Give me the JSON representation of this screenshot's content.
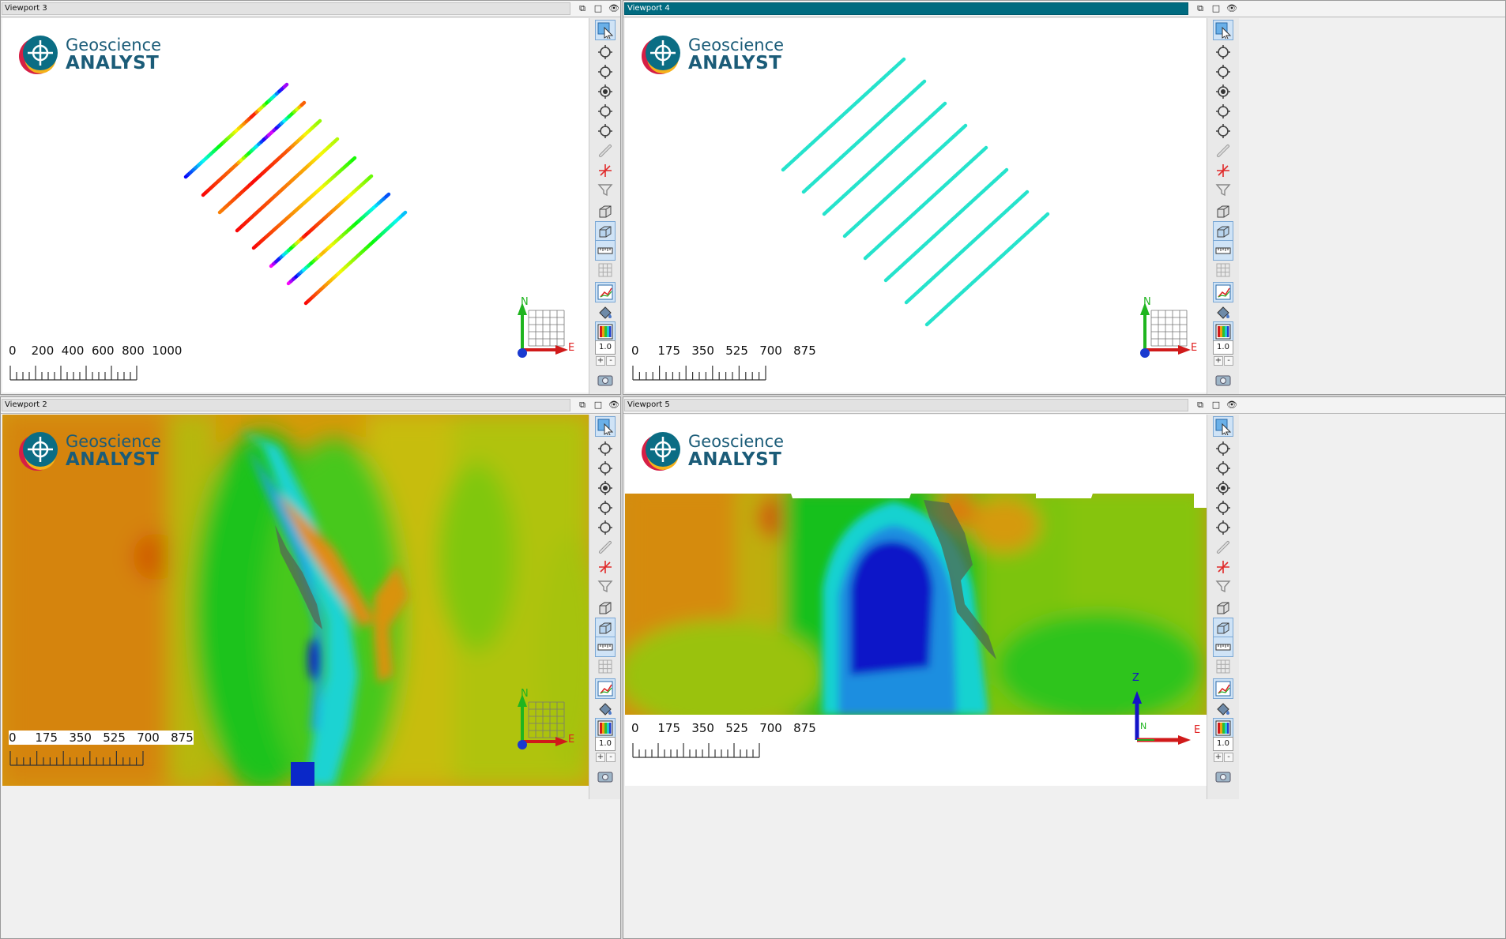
{
  "viewports": [
    {
      "title": "Viewport 3",
      "scale_labels": "0    200  400  600  800  1000",
      "axis_up": "N",
      "axis_right": "E",
      "zoom": "1.0"
    },
    {
      "title": "Viewport 4",
      "scale_labels": "0     175   350   525   700   875",
      "axis_up": "N",
      "axis_right": "E",
      "zoom": "1.0"
    },
    {
      "title": "Viewport 2",
      "scale_labels": "0     175   350   525   700   875",
      "axis_up": "N",
      "axis_right": "E",
      "zoom": "1.0"
    },
    {
      "title": "Viewport 5",
      "scale_labels": "0     175   350   525   700   875",
      "axis_up": "Z",
      "axis_right": "E",
      "axis_inner": "N",
      "zoom": "1.0"
    }
  ],
  "logo": {
    "line1": "Geoscience",
    "line2": "ANALYST"
  },
  "title_buttons": {
    "restore": "⧉",
    "maximize": "□",
    "visibility": "👁"
  },
  "zoom_controls": {
    "plus": "+",
    "minus": "-"
  },
  "toolbar_icons": [
    "select-icon",
    "reset-view-icon",
    "rotate-view-icon",
    "center-view-icon",
    "orbit-icon",
    "pan-icon",
    "link-icon",
    "axes-cross-icon",
    "filter-icon",
    "clip-box-icon",
    "clip-plane-icon",
    "ruler-icon",
    "grid-icon",
    "axes-display-icon",
    "fill-icon",
    "colorbar-icon"
  ],
  "colors": {
    "active_title": "#006b80",
    "accent": "#1b5c78",
    "cyan_lines": "#25e3cc"
  }
}
